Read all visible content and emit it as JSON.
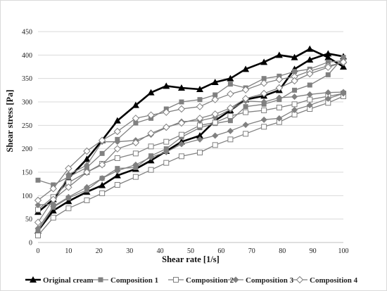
{
  "chart_data": {
    "type": "line",
    "xlabel": "Shear rate [1/s]",
    "ylabel": "Shear stress  [Pa]",
    "xlim": [
      0,
      100
    ],
    "ylim": [
      0,
      450
    ],
    "x_ticks": [
      0,
      10,
      20,
      30,
      40,
      50,
      60,
      70,
      80,
      90,
      100
    ],
    "y_ticks": [
      0,
      50,
      100,
      150,
      200,
      250,
      300,
      350,
      400,
      450
    ],
    "grid": "horizontal",
    "legend_position": "bottom",
    "series": [
      {
        "name": "Original cream",
        "marker": "triangle-filled",
        "color": "#000000",
        "up": {
          "x": [
            0,
            5,
            10,
            16,
            21,
            26,
            32,
            37,
            42,
            47,
            53,
            58,
            63,
            68,
            74,
            79,
            84,
            89,
            95,
            100
          ],
          "y": [
            65,
            92,
            137,
            178,
            218,
            260,
            293,
            320,
            334,
            330,
            327,
            342,
            350,
            370,
            385,
            400,
            395,
            413,
            395,
            375
          ]
        },
        "down": {
          "x": [
            100,
            95,
            89,
            84,
            79,
            74,
            68,
            63,
            58,
            53,
            47,
            42,
            37,
            32,
            26,
            21,
            16,
            10,
            5,
            0
          ],
          "y": [
            397,
            403,
            390,
            370,
            325,
            313,
            305,
            282,
            260,
            228,
            215,
            195,
            175,
            157,
            143,
            122,
            108,
            88,
            68,
            25
          ]
        }
      },
      {
        "name": "Composition 1",
        "marker": "square-filled",
        "color": "#808080",
        "up": {
          "x": [
            0,
            5,
            10,
            16,
            21,
            26,
            32,
            37,
            42,
            47,
            53,
            58,
            63,
            68,
            74,
            79,
            84,
            89,
            95,
            100
          ],
          "y": [
            133,
            123,
            140,
            160,
            190,
            220,
            255,
            265,
            285,
            300,
            305,
            315,
            338,
            330,
            350,
            355,
            365,
            370,
            385,
            388
          ]
        },
        "down": {
          "x": [
            100,
            95,
            89,
            84,
            79,
            74,
            68,
            63,
            58,
            53,
            47,
            42,
            37,
            32,
            26,
            21,
            16,
            10,
            5,
            0
          ],
          "y": [
            395,
            358,
            336,
            325,
            305,
            295,
            290,
            260,
            254,
            245,
            225,
            200,
            185,
            160,
            158,
            137,
            112,
            95,
            75,
            25
          ]
        }
      },
      {
        "name": "Composition 2",
        "marker": "square-open",
        "color": "#808080",
        "up": {
          "x": [
            0,
            5,
            10,
            16,
            21,
            26,
            32,
            37,
            42,
            47,
            53,
            58,
            63,
            68,
            74,
            79,
            84,
            89,
            95,
            100
          ],
          "y": [
            70,
            97,
            128,
            150,
            168,
            180,
            190,
            205,
            215,
            230,
            250,
            256,
            270,
            278,
            282,
            288,
            295,
            305,
            312,
            318
          ]
        },
        "down": {
          "x": [
            100,
            95,
            89,
            84,
            79,
            74,
            68,
            63,
            58,
            53,
            47,
            42,
            37,
            32,
            26,
            21,
            16,
            10,
            5,
            0
          ],
          "y": [
            312,
            298,
            285,
            273,
            257,
            247,
            232,
            220,
            208,
            192,
            184,
            170,
            155,
            140,
            123,
            105,
            90,
            73,
            53,
            15
          ]
        }
      },
      {
        "name": "Composition 3",
        "marker": "diamond-filled",
        "color": "#808080",
        "up": {
          "x": [
            0,
            5,
            10,
            16,
            21,
            26,
            32,
            37,
            42,
            47,
            53,
            58,
            63,
            68,
            74,
            79,
            84,
            89,
            95,
            100
          ],
          "y": [
            80,
            82,
            145,
            165,
            215,
            215,
            218,
            230,
            245,
            258,
            260,
            267,
            284,
            302,
            300,
            309,
            311,
            316,
            320,
            321
          ]
        },
        "down": {
          "x": [
            100,
            95,
            89,
            84,
            79,
            74,
            68,
            63,
            58,
            53,
            47,
            42,
            37,
            32,
            26,
            21,
            16,
            10,
            5,
            0
          ],
          "y": [
            318,
            307,
            293,
            283,
            265,
            262,
            251,
            238,
            228,
            220,
            210,
            193,
            182,
            166,
            153,
            137,
            118,
            97,
            77,
            30
          ]
        }
      },
      {
        "name": "Composition 4",
        "marker": "diamond-open",
        "color": "#808080",
        "up": {
          "x": [
            0,
            5,
            10,
            16,
            21,
            26,
            32,
            37,
            42,
            47,
            53,
            58,
            63,
            68,
            74,
            79,
            84,
            89,
            95,
            100
          ],
          "y": [
            90,
            115,
            158,
            195,
            218,
            237,
            265,
            272,
            278,
            285,
            290,
            305,
            317,
            326,
            340,
            348,
            354,
            366,
            377,
            384
          ]
        },
        "down": {
          "x": [
            100,
            95,
            89,
            84,
            79,
            74,
            68,
            63,
            58,
            53,
            47,
            42,
            37,
            32,
            26,
            21,
            16,
            10,
            5,
            0
          ],
          "y": [
            385,
            374,
            360,
            345,
            330,
            318,
            307,
            287,
            274,
            265,
            255,
            246,
            233,
            213,
            200,
            166,
            150,
            118,
            92,
            43
          ]
        }
      }
    ]
  }
}
